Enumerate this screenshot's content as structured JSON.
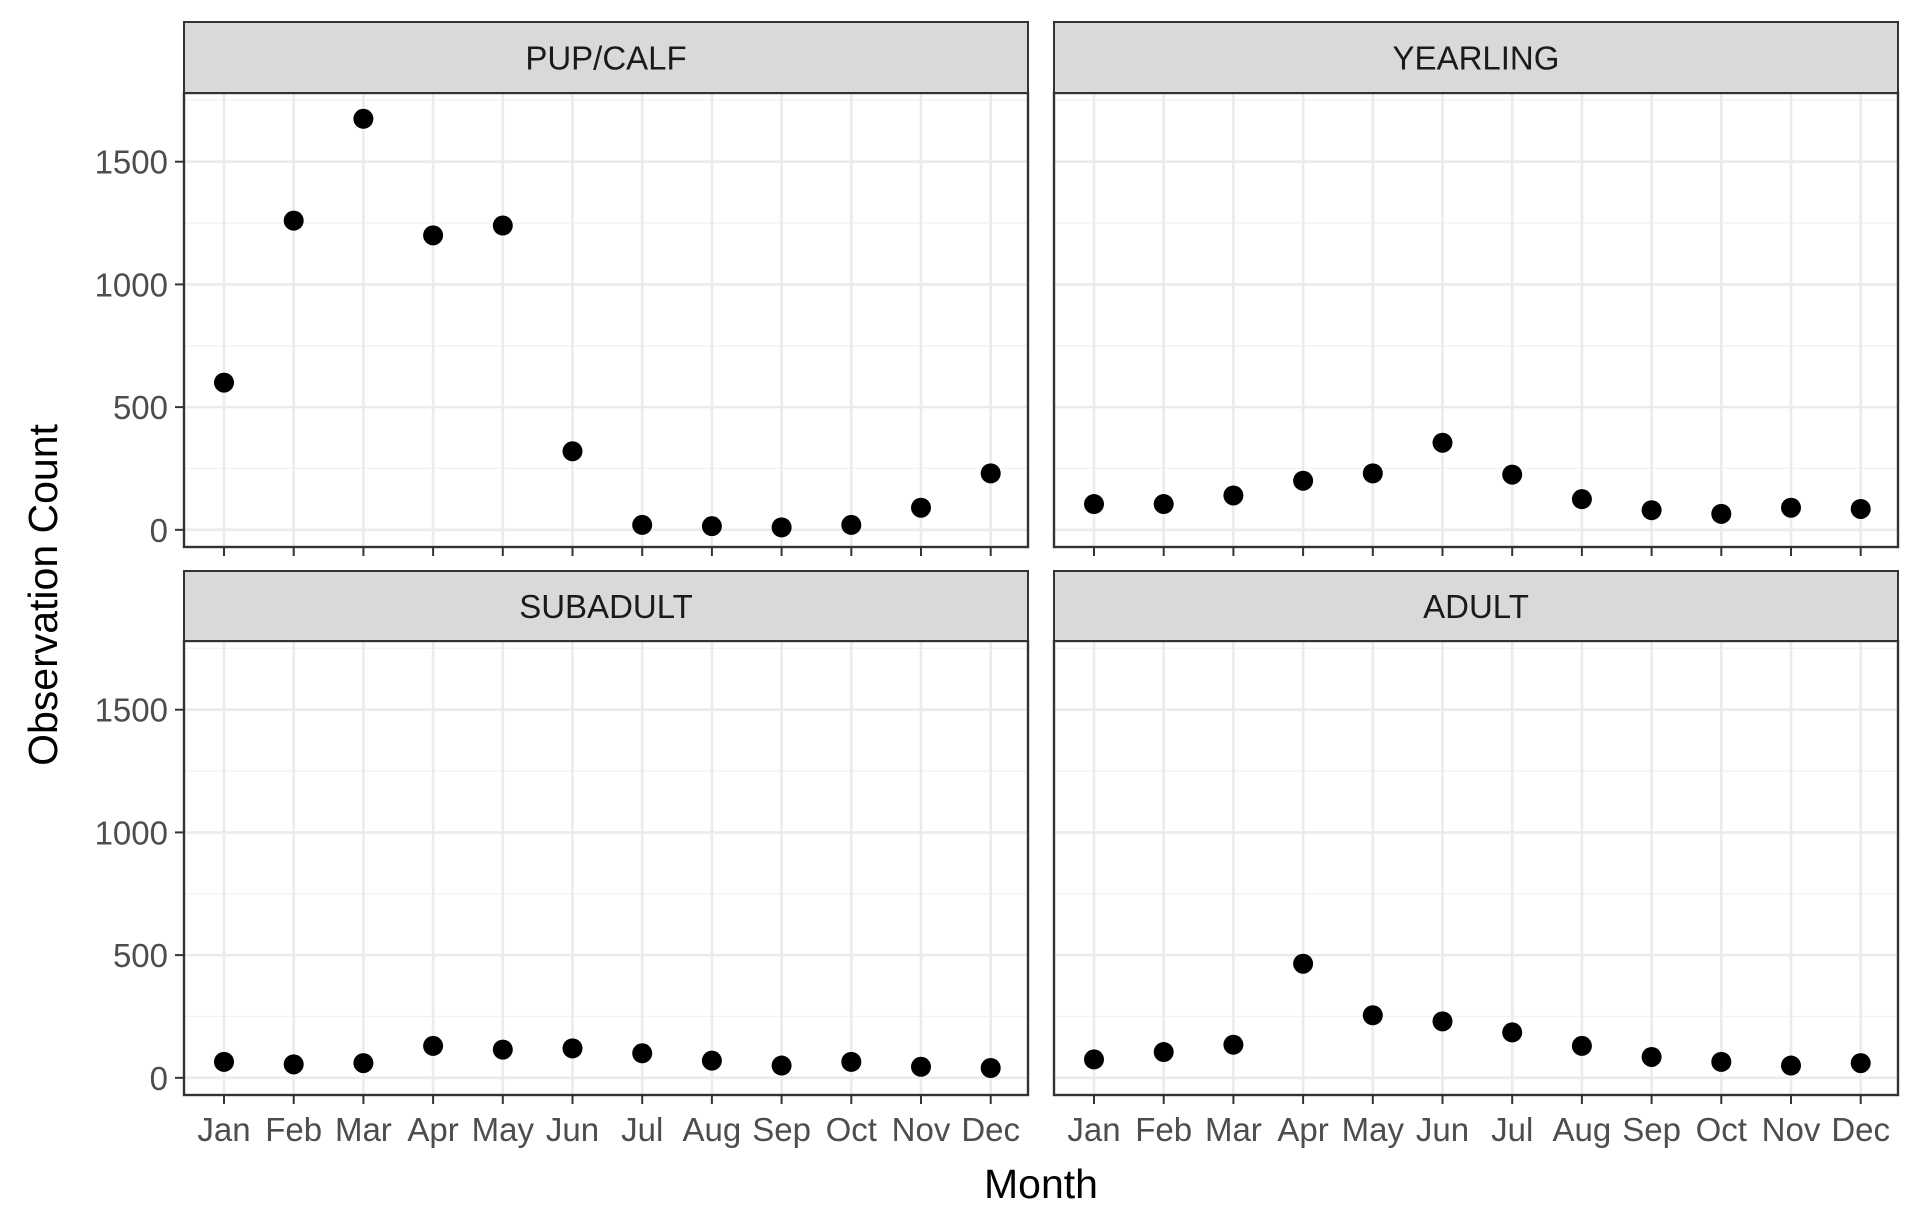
{
  "chart_data": {
    "type": "scatter",
    "layout": "facet-grid-2x2",
    "xlabel": "Month",
    "ylabel": "Observation Count",
    "categories": [
      "Jan",
      "Feb",
      "Mar",
      "Apr",
      "May",
      "Jun",
      "Jul",
      "Aug",
      "Sep",
      "Oct",
      "Nov",
      "Dec"
    ],
    "ylim": [
      -70,
      1780
    ],
    "yticks": [
      0,
      500,
      1000,
      1500
    ],
    "grid": true,
    "legend": "none",
    "point_color": "#000000",
    "panels": [
      {
        "title": "PUP/CALF",
        "values": [
          600,
          1260,
          1675,
          1200,
          1240,
          320,
          20,
          15,
          10,
          20,
          90,
          230
        ]
      },
      {
        "title": "YEARLING",
        "values": [
          105,
          105,
          140,
          200,
          230,
          355,
          225,
          125,
          80,
          65,
          90,
          85
        ]
      },
      {
        "title": "SUBADULT",
        "values": [
          65,
          55,
          60,
          130,
          115,
          120,
          100,
          70,
          50,
          65,
          45,
          40
        ]
      },
      {
        "title": "ADULT",
        "values": [
          75,
          105,
          135,
          465,
          255,
          230,
          185,
          130,
          85,
          65,
          50,
          60
        ]
      }
    ]
  }
}
